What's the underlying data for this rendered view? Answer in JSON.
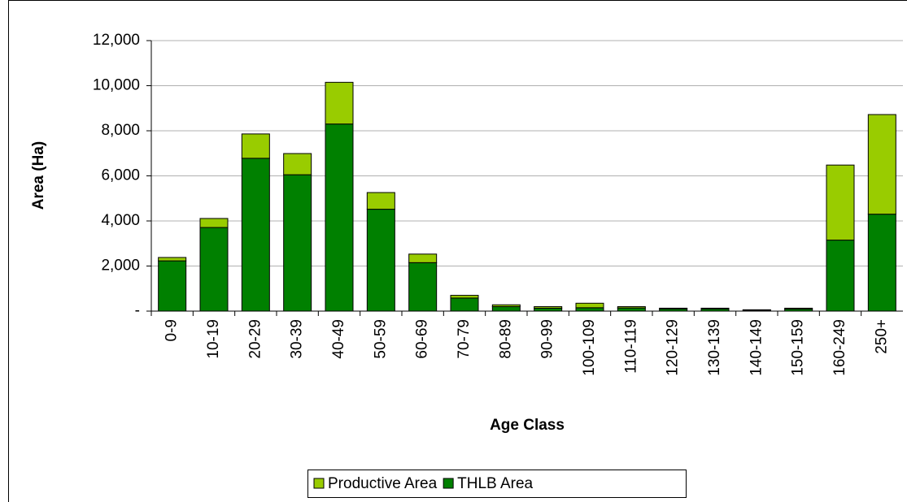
{
  "chart_data": {
    "type": "stacked_bar",
    "y_label": "Area (Ha)",
    "x_label": "Age Class",
    "categories": [
      "0-9",
      "10-19",
      "20-29",
      "30-39",
      "40-49",
      "50-59",
      "60-69",
      "70-79",
      "80-89",
      "90-99",
      "100-109",
      "110-119",
      "120-129",
      "130-139",
      "140-149",
      "150-159",
      "160-249",
      "250+"
    ],
    "series": [
      {
        "name": "Productive Area",
        "color": "#99cc00",
        "values": [
          150,
          400,
          1080,
          940,
          1850,
          740,
          380,
          120,
          80,
          70,
          200,
          60,
          30,
          30,
          20,
          40,
          3330,
          4420
        ]
      },
      {
        "name": "THLB Area",
        "color": "#008000",
        "values": [
          2230,
          3710,
          6780,
          6050,
          8300,
          4520,
          2150,
          580,
          200,
          130,
          150,
          140,
          100,
          100,
          40,
          90,
          3150,
          4300
        ]
      }
    ],
    "ylim": [
      0,
      12000
    ],
    "yticks": [
      {
        "value": 0,
        "label": "-"
      },
      {
        "value": 2000,
        "label": "2,000"
      },
      {
        "value": 4000,
        "label": "4,000"
      },
      {
        "value": 6000,
        "label": "6,000"
      },
      {
        "value": 8000,
        "label": "8,000"
      },
      {
        "value": 10000,
        "label": "10,000"
      },
      {
        "value": 12000,
        "label": "12,000"
      }
    ],
    "grid": true,
    "legend": "bottom"
  }
}
